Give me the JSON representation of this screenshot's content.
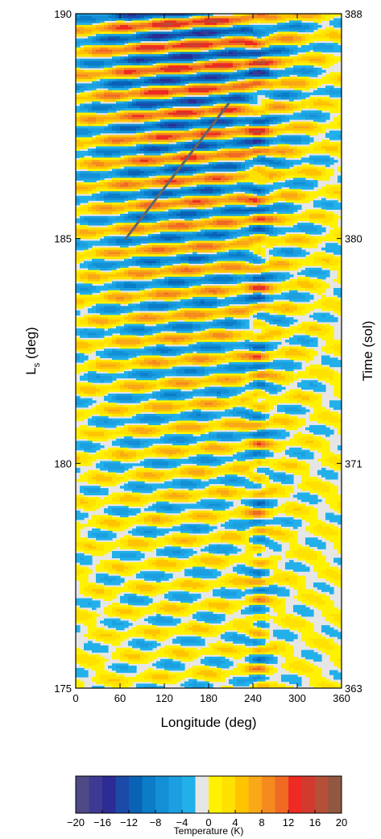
{
  "chart_data": {
    "type": "heatmap",
    "x": {
      "label": "Longitude (deg)",
      "range": [
        0,
        360
      ],
      "ticks": [
        0,
        60,
        120,
        180,
        240,
        300,
        360
      ],
      "tick_labels": [
        "0",
        "60",
        "120",
        "180",
        "240",
        "300",
        "360"
      ]
    },
    "y_left": {
      "label_main": "L",
      "label_sub": "s",
      "label_unit": " (deg)",
      "range": [
        175,
        190
      ],
      "ticks": [
        175,
        180,
        185,
        190
      ],
      "tick_labels": [
        "175",
        "180",
        "185",
        "190"
      ]
    },
    "y_right": {
      "label": "Time (sol)",
      "range": [
        363,
        388
      ],
      "ticks": [
        363,
        371,
        380,
        388
      ],
      "tick_labels": [
        "363",
        "371",
        "380",
        "388"
      ],
      "tick_positions_ls": [
        175,
        180,
        185,
        190
      ]
    },
    "trend_line": {
      "color": "#666666",
      "points": [
        [
          68,
          185.0
        ],
        [
          207,
          188.0
        ]
      ]
    },
    "stationary_wave_longitude": 248,
    "colorbar": {
      "label": "Temperature (K)",
      "levels": [
        -20,
        -18,
        -16,
        -14,
        -12,
        -10,
        -8,
        -6,
        -4,
        -2,
        0,
        2,
        4,
        6,
        8,
        10,
        12,
        14,
        16,
        18,
        20
      ],
      "tick_values": [
        -20,
        -16,
        -12,
        -8,
        -4,
        0,
        4,
        8,
        12,
        16,
        20
      ],
      "tick_labels": [
        "−20",
        "−16",
        "−12",
        "−8",
        "−4",
        "0",
        "4",
        "8",
        "12",
        "16",
        "20"
      ],
      "colors": [
        "#4e4a86",
        "#3c3a92",
        "#2c2c94",
        "#1c4aa8",
        "#0a62b6",
        "#0a7cc8",
        "#138fd6",
        "#1c9fe0",
        "#22b0ea",
        "#e6e6e6",
        "#fff200",
        "#ffe100",
        "#ffc400",
        "#f9a818",
        "#f58a1e",
        "#f06a24",
        "#ee2a24",
        "#d23a2e",
        "#b45037",
        "#915841"
      ]
    }
  }
}
